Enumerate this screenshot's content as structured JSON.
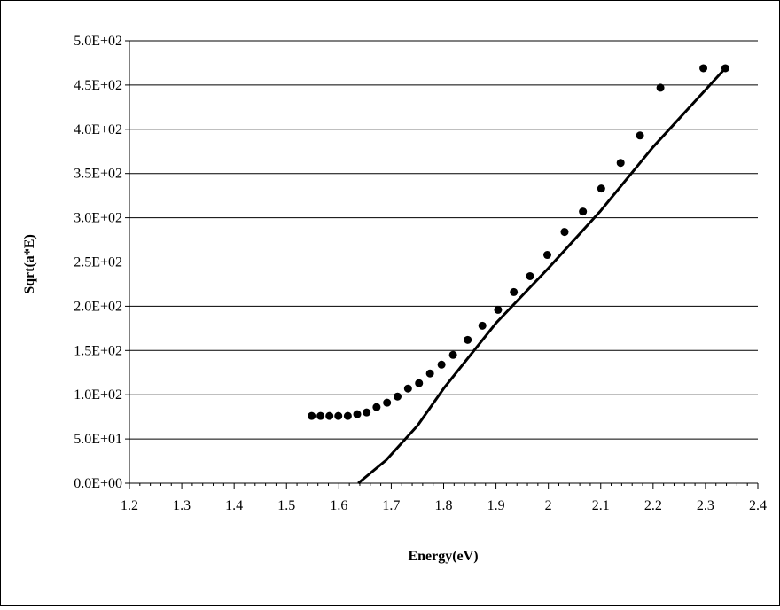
{
  "chart_data": {
    "type": "scatter",
    "title": "",
    "xlabel": "Energy(eV)",
    "ylabel": "Sqrt(a*E)",
    "xlim": [
      1.2,
      2.4
    ],
    "ylim": [
      0,
      500
    ],
    "x_ticks": [
      1.2,
      1.3,
      1.4,
      1.5,
      1.6,
      1.7,
      1.8,
      1.9,
      2.0,
      2.1,
      2.2,
      2.3,
      2.4
    ],
    "x_tick_labels": [
      "1.2",
      "1.3",
      "1.4",
      "1.5",
      "1.6",
      "1.7",
      "1.8",
      "1.9",
      "2",
      "2.1",
      "2.2",
      "2.3",
      "2.4"
    ],
    "y_ticks": [
      0,
      50,
      100,
      150,
      200,
      250,
      300,
      350,
      400,
      450,
      500
    ],
    "y_tick_labels": [
      "0.0E+00",
      "5.0E+01",
      "1.0E+02",
      "1.5E+02",
      "2.0E+02",
      "2.5E+02",
      "3.0E+02",
      "3.5E+02",
      "4.0E+02",
      "4.5E+02",
      "5.0E+02"
    ],
    "grid": "horizontal",
    "legend": "none",
    "series": [
      {
        "type": "scatter",
        "marker_color": "#000000",
        "x": [
          1.548,
          1.565,
          1.582,
          1.599,
          1.617,
          1.635,
          1.653,
          1.672,
          1.692,
          1.712,
          1.732,
          1.753,
          1.774,
          1.796,
          1.818,
          1.846,
          1.874,
          1.904,
          1.934,
          1.965,
          1.998,
          2.031,
          2.066,
          2.101,
          2.138,
          2.175,
          2.214,
          2.296,
          2.338
        ],
        "y": [
          76,
          76,
          76,
          76,
          76,
          78,
          80,
          86,
          91,
          98,
          107,
          113,
          124,
          134,
          145,
          162,
          178,
          196,
          216,
          234,
          258,
          284,
          307,
          333,
          362,
          393,
          447,
          469,
          469
        ]
      },
      {
        "type": "line",
        "line_color": "#000000",
        "x": [
          1.637,
          1.69,
          1.75,
          1.8,
          1.9,
          2.0,
          2.1,
          2.2,
          2.338
        ],
        "y": [
          0,
          26,
          65,
          107,
          181,
          243,
          308,
          380,
          469
        ]
      }
    ]
  }
}
